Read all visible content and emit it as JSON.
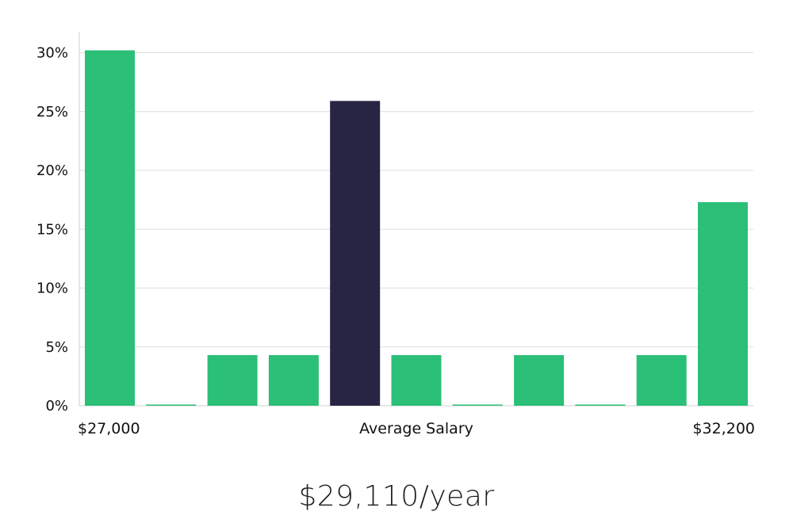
{
  "chart_data": {
    "type": "bar",
    "title": "",
    "xlabel": "Average Salary",
    "ylabel": "",
    "x_start_label": "$27,000",
    "x_end_label": "$32,200",
    "ylim": [
      0,
      32
    ],
    "yticks": [
      0,
      5,
      10,
      15,
      20,
      25,
      30
    ],
    "ytick_labels": [
      "0%",
      "5%",
      "10%",
      "15%",
      "20%",
      "25%",
      "30%"
    ],
    "values": [
      30.2,
      0,
      4.3,
      4.3,
      25.9,
      4.3,
      0,
      4.3,
      0,
      4.3,
      17.3
    ],
    "highlight_index": 4,
    "grid": true,
    "colors": {
      "bar": "#2bbf77",
      "highlight": "#272444",
      "grid": "#dddddd",
      "axis": "#cfcfcf"
    }
  },
  "summary": {
    "salary_text": "$29,110/year"
  }
}
